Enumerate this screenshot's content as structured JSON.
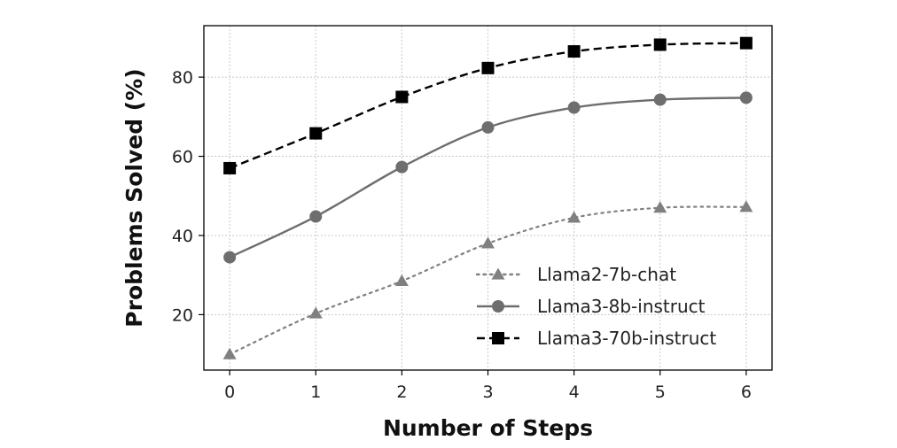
{
  "chart_data": {
    "type": "line",
    "xlabel": "Number of Steps",
    "ylabel": "Problems Solved (%)",
    "x": [
      0,
      1,
      2,
      3,
      4,
      5,
      6
    ],
    "xlim": [
      -0.3,
      6.3
    ],
    "ylim": [
      6,
      93
    ],
    "xticks": [
      0,
      1,
      2,
      3,
      4,
      5,
      6
    ],
    "yticks": [
      20,
      40,
      60,
      80
    ],
    "grid": true,
    "legend_position": "lower-right",
    "series": [
      {
        "name": "Llama2-7b-chat",
        "values": [
          10,
          20.3,
          28.5,
          38,
          44.5,
          47,
          47.2
        ],
        "color": "#808080",
        "line_style": "dotted",
        "marker": "triangle"
      },
      {
        "name": "Llama3-8b-instruct",
        "values": [
          34.5,
          44.8,
          57.3,
          67.3,
          72.3,
          74.3,
          74.8
        ],
        "color": "#6e6e6e",
        "line_style": "solid",
        "marker": "circle"
      },
      {
        "name": "Llama3-70b-instruct",
        "values": [
          57,
          65.8,
          75,
          82.3,
          86.5,
          88.2,
          88.6
        ],
        "color": "#000000",
        "line_style": "dashed",
        "marker": "square"
      }
    ]
  }
}
